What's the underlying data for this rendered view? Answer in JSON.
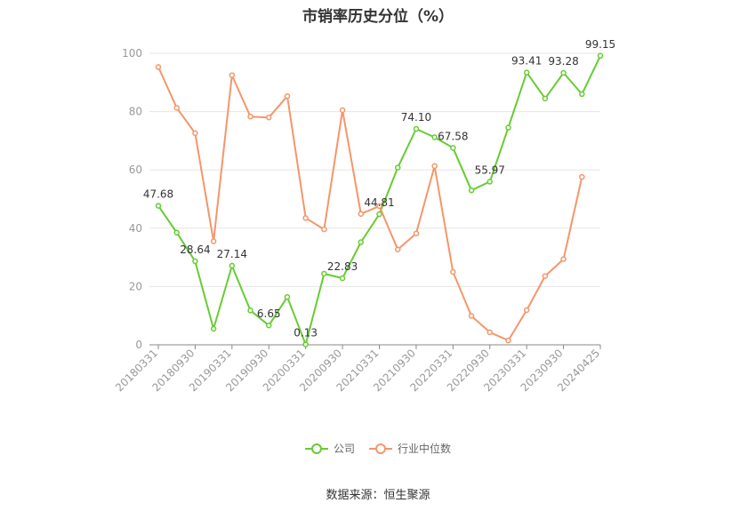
{
  "chart_data": {
    "type": "line",
    "title": "市销率历史分位（%）",
    "ylim": [
      0,
      100
    ],
    "yticks": [
      0,
      20,
      40,
      60,
      80,
      100
    ],
    "xtick_labels": [
      "20180331",
      "20180930",
      "20190331",
      "20190930",
      "20200331",
      "20200930",
      "20210331",
      "20210930",
      "20220331",
      "20220930",
      "20230331",
      "20230930",
      "20240425"
    ],
    "grid": true,
    "legend_position": "bottom",
    "series": [
      {
        "name": "公司",
        "color": "#66cc33",
        "values": [
          47.68,
          38.5,
          28.64,
          5.5,
          27.14,
          11.8,
          6.65,
          16.4,
          0.13,
          24.4,
          22.83,
          35.2,
          44.81,
          60.8,
          74.1,
          71.2,
          67.58,
          53.0,
          55.97,
          74.5,
          93.41,
          84.5,
          93.28,
          86.0,
          99.15
        ],
        "labels": {
          "0": "47.68",
          "2": "28.64",
          "4": "27.14",
          "6": "6.65",
          "8": "0.13",
          "10": "22.83",
          "12": "44.81",
          "14": "74.10",
          "16": "67.58",
          "18": "55.97",
          "20": "93.41",
          "22": "93.28",
          "24": "99.15"
        }
      },
      {
        "name": "行业中位数",
        "color": "#f4966a",
        "values": [
          95.3,
          81.3,
          72.6,
          35.5,
          92.5,
          78.3,
          78.0,
          85.3,
          43.5,
          39.6,
          80.5,
          44.9,
          47.6,
          32.7,
          38.2,
          61.3,
          25.0,
          9.9,
          4.3,
          1.5,
          11.9,
          23.6,
          29.4,
          57.6,
          null
        ]
      }
    ]
  },
  "source_text": "数据来源：恒生聚源"
}
